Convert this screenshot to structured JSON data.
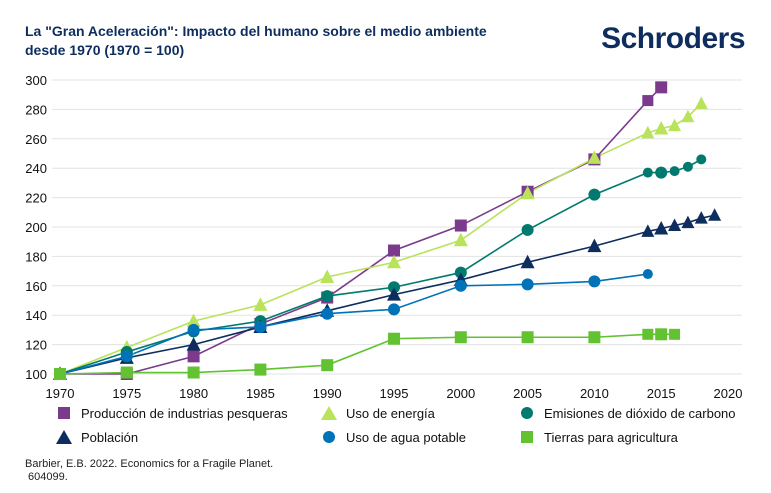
{
  "header": {
    "title_line1": "La \"Gran Aceleración\": Impacto del humano sobre el medio ambiente",
    "title_line2": "desde 1970 (1970 = 100)",
    "logo": "Schroders"
  },
  "source": {
    "line1": "Barbier, E.B. 2022. Economics for a Fragile Planet.",
    "line2": " 604099."
  },
  "chart_data": {
    "type": "line",
    "xlim": [
      1970,
      2020
    ],
    "ylim": [
      100,
      300
    ],
    "xticks": [
      1970,
      1975,
      1980,
      1985,
      1990,
      1995,
      2000,
      2005,
      2010,
      2015,
      2020
    ],
    "yticks": [
      100,
      120,
      140,
      160,
      180,
      200,
      220,
      240,
      260,
      280,
      300
    ],
    "grid": "horizontal",
    "legend": "bottom",
    "series": [
      {
        "name": "Producción de industrias pesqueras",
        "color": "#7b3a8c",
        "marker": "square",
        "x": [
          1970,
          1975,
          1980,
          1985,
          1990,
          1995,
          2000,
          2005,
          2010,
          2014,
          2015
        ],
        "y": [
          100,
          100,
          112,
          134,
          152,
          184,
          201,
          224,
          246,
          286,
          295
        ]
      },
      {
        "name": "Uso de energía",
        "color": "#b8e35a",
        "marker": "triangle",
        "x": [
          1970,
          1975,
          1980,
          1985,
          1990,
          1995,
          2000,
          2005,
          2010,
          2014,
          2015,
          2016,
          2017,
          2018
        ],
        "y": [
          100,
          118,
          136,
          147,
          166,
          176,
          191,
          223,
          247,
          264,
          267,
          269,
          275,
          284
        ]
      },
      {
        "name": "Emisiones de dióxido de carbono",
        "color": "#007a6e",
        "marker": "circle",
        "x": [
          1970,
          1975,
          1980,
          1985,
          1990,
          1995,
          2000,
          2005,
          2010,
          2014,
          2015,
          2016,
          2017,
          2018
        ],
        "y": [
          100,
          115,
          129,
          136,
          153,
          159,
          169,
          198,
          222,
          237,
          237,
          238,
          241,
          246
        ]
      },
      {
        "name": "Población",
        "color": "#0d2d5e",
        "marker": "triangle",
        "x": [
          1970,
          1975,
          1980,
          1985,
          1990,
          1995,
          2000,
          2005,
          2010,
          2014,
          2015,
          2016,
          2017,
          2018,
          2019
        ],
        "y": [
          100,
          111,
          120,
          132,
          143,
          154,
          164,
          176,
          187,
          197,
          199,
          201,
          203,
          206,
          208
        ]
      },
      {
        "name": "Uso de agua potable",
        "color": "#0072b8",
        "marker": "circle",
        "x": [
          1970,
          1975,
          1980,
          1985,
          1990,
          1995,
          2000,
          2005,
          2010,
          2014
        ],
        "y": [
          100,
          112,
          130,
          132,
          141,
          144,
          160,
          161,
          163,
          168
        ]
      },
      {
        "name": "Tierras para agricultura",
        "color": "#62c232",
        "marker": "square",
        "x": [
          1970,
          1975,
          1980,
          1985,
          1990,
          1995,
          2000,
          2005,
          2010,
          2014,
          2015,
          2016
        ],
        "y": [
          100,
          101,
          101,
          103,
          106,
          124,
          125,
          125,
          125,
          127,
          127,
          127
        ]
      }
    ]
  }
}
